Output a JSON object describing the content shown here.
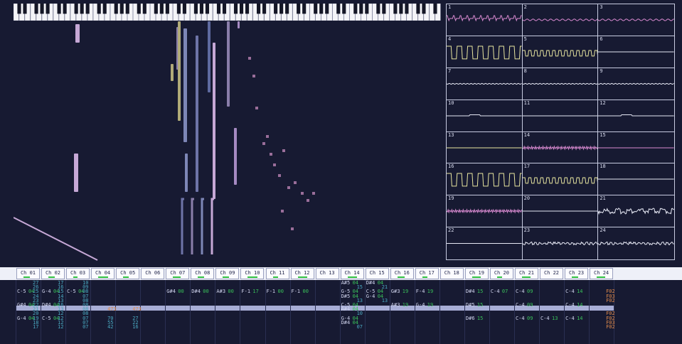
{
  "colors": {
    "background": "#171a32",
    "scope_wave_pink": "#d88ad0",
    "scope_wave_yellow": "#e8e6a0",
    "scope_wave_white": "#e6e8f4",
    "note_color": "#d0d4ee",
    "instrument_color": "#39c15a",
    "volume_color": "#4aa8c0",
    "effect_color": "#e08a4a",
    "cursor_row": "#a8aed6",
    "meter": "#2fbf3f"
  },
  "channels": [
    "Ch 01",
    "Ch 02",
    "Ch 03",
    "Ch 04",
    "Ch 05",
    "Ch 06",
    "Ch 07",
    "Ch 08",
    "Ch 09",
    "Ch 10",
    "Ch 11",
    "Ch 12",
    "Ch 13",
    "Ch 14",
    "Ch 15",
    "Ch 16",
    "Ch 17",
    "Ch 18",
    "Ch 19",
    "Ch 20",
    "Ch 21",
    "Ch 22",
    "Ch 23",
    "Ch 24"
  ],
  "channel_levels": [
    0.6,
    0.6,
    0.4,
    0.9,
    0.5,
    0,
    0.7,
    0.6,
    0.6,
    0.9,
    0.5,
    0.9,
    0,
    0.9,
    0,
    0.7,
    0.5,
    0,
    0.8,
    0.5,
    0.8,
    0,
    0.6,
    0.8
  ],
  "scopes": [
    {
      "num": "1",
      "color": "pink",
      "shape": "spiky"
    },
    {
      "num": "2",
      "color": "pink",
      "shape": "small"
    },
    {
      "num": "3",
      "color": "pink",
      "shape": "small"
    },
    {
      "num": "4",
      "color": "yellow",
      "shape": "square_big"
    },
    {
      "num": "5",
      "color": "yellow",
      "shape": "square_small"
    },
    {
      "num": "6",
      "color": "white",
      "shape": "flat"
    },
    {
      "num": "7",
      "color": "white",
      "shape": "flat_ripple"
    },
    {
      "num": "8",
      "color": "white",
      "shape": "flat_ripple"
    },
    {
      "num": "9",
      "color": "white",
      "shape": "flat_ripple"
    },
    {
      "num": "10",
      "color": "white",
      "shape": "flat_bump"
    },
    {
      "num": "11",
      "color": "white",
      "shape": "flat"
    },
    {
      "num": "12",
      "color": "white",
      "shape": "flat_bump"
    },
    {
      "num": "13",
      "color": "yellow",
      "shape": "flat"
    },
    {
      "num": "14",
      "color": "pink",
      "shape": "dense"
    },
    {
      "num": "15",
      "color": "pink",
      "shape": "flat"
    },
    {
      "num": "16",
      "color": "yellow",
      "shape": "square_big"
    },
    {
      "num": "17",
      "color": "yellow",
      "shape": "square_small"
    },
    {
      "num": "18",
      "color": "white",
      "shape": "flat"
    },
    {
      "num": "19",
      "color": "pink",
      "shape": "dense"
    },
    {
      "num": "20",
      "color": "white",
      "shape": "flat"
    },
    {
      "num": "21",
      "color": "white",
      "shape": "noise"
    },
    {
      "num": "22",
      "color": "white",
      "shape": "flat"
    },
    {
      "num": "23",
      "color": "white",
      "shape": "noise_small"
    },
    {
      "num": "24",
      "color": "white",
      "shape": "noise_small"
    }
  ],
  "pattern": [
    {
      "ch": 0,
      "lines": [
        [
          "",
          "",
          "27"
        ],
        [
          "",
          "",
          "26"
        ],
        [
          "C-5",
          "04",
          "25"
        ],
        [
          "",
          "",
          "24"
        ],
        [
          "",
          "",
          "23"
        ],
        [
          "G#4",
          "04",
          "22"
        ],
        [
          "",
          "",
          "21"
        ],
        [
          "",
          "",
          "20"
        ],
        [
          "G-4",
          "04",
          "19"
        ],
        [
          "",
          "",
          "18"
        ],
        [
          "",
          "",
          "17"
        ]
      ]
    },
    {
      "ch": 1,
      "lines": [
        [
          "",
          "",
          "17"
        ],
        [
          "",
          "",
          "16"
        ],
        [
          "G-4",
          "04",
          "15"
        ],
        [
          "",
          "",
          "14"
        ],
        [
          "",
          "",
          "13"
        ],
        [
          "D#4",
          "04",
          "16"
        ],
        [
          "",
          "",
          "13"
        ],
        [
          "",
          "",
          "12"
        ],
        [
          "C-5",
          "04",
          "12"
        ],
        [
          "",
          "",
          "12"
        ],
        [
          "",
          "",
          "12"
        ]
      ]
    },
    {
      "ch": 2,
      "lines": [
        [
          "",
          "",
          "10"
        ],
        [
          "",
          "",
          "09"
        ],
        [
          "C-5",
          "04",
          "08"
        ],
        [
          "",
          "",
          "07"
        ],
        [
          "",
          "",
          "08"
        ],
        [
          "",
          "",
          "08"
        ],
        [
          "",
          "",
          "08"
        ],
        [
          "",
          "",
          "08"
        ],
        [
          "",
          "",
          "07"
        ],
        [
          "",
          "",
          "07"
        ],
        [
          "",
          "",
          "07"
        ]
      ]
    },
    {
      "ch": 3,
      "lines": [
        [
          "",
          "",
          ""
        ],
        [
          "",
          "",
          ""
        ],
        [
          "",
          "",
          ""
        ],
        [
          "",
          "",
          ""
        ],
        [
          "",
          "",
          ""
        ],
        [
          "",
          "",
          ""
        ],
        [
          "",
          "",
          "473"
        ],
        [
          "",
          "",
          ""
        ],
        [
          "",
          "",
          "70"
        ],
        [
          "",
          "",
          "55"
        ],
        [
          "",
          "",
          "42"
        ]
      ]
    },
    {
      "ch": 4,
      "lines": [
        [
          "",
          "",
          ""
        ],
        [
          "",
          "",
          ""
        ],
        [
          "",
          "",
          ""
        ],
        [
          "",
          "",
          ""
        ],
        [
          "",
          "",
          ""
        ],
        [
          "",
          "",
          ""
        ],
        [
          "",
          "",
          "473"
        ],
        [
          "",
          "",
          ""
        ],
        [
          "",
          "",
          "27"
        ],
        [
          "",
          "",
          "22"
        ],
        [
          "",
          "",
          "16"
        ]
      ]
    },
    {
      "ch": 6,
      "lines": [
        [
          "",
          "",
          ""
        ],
        [
          "",
          "",
          ""
        ],
        [
          "G#4",
          "00",
          ""
        ]
      ]
    },
    {
      "ch": 7,
      "lines": [
        [
          "",
          "",
          ""
        ],
        [
          "",
          "",
          ""
        ],
        [
          "D#4",
          "00",
          ""
        ]
      ]
    },
    {
      "ch": 8,
      "lines": [
        [
          "",
          "",
          ""
        ],
        [
          "",
          "",
          ""
        ],
        [
          "A#3",
          "00",
          ""
        ]
      ]
    },
    {
      "ch": 9,
      "lines": [
        [
          "",
          "",
          ""
        ],
        [
          "",
          "",
          ""
        ],
        [
          "F-1",
          "17",
          ""
        ]
      ]
    },
    {
      "ch": 10,
      "lines": [
        [
          "",
          "",
          ""
        ],
        [
          "",
          "",
          ""
        ],
        [
          "F-1",
          "00",
          ""
        ]
      ]
    },
    {
      "ch": 11,
      "lines": [
        [
          "",
          "",
          ""
        ],
        [
          "",
          "",
          ""
        ],
        [
          "F-1",
          "00",
          ""
        ]
      ]
    },
    {
      "ch": 13,
      "lines": [
        [
          "A#5",
          "04",
          ""
        ],
        [
          "",
          "",
          "15"
        ],
        [
          "G-5",
          "04",
          ""
        ],
        [
          "D#5",
          "04",
          ""
        ],
        [
          "",
          "",
          "13"
        ],
        [
          "C-5",
          "04",
          ""
        ],
        [
          "A#4",
          "04",
          ""
        ],
        [
          "",
          "",
          "10"
        ],
        [
          "G-4",
          "04",
          ""
        ],
        [
          "D#4",
          "04",
          ""
        ],
        [
          "",
          "",
          "07"
        ]
      ]
    },
    {
      "ch": 14,
      "lines": [
        [
          "D#4",
          "04",
          ""
        ],
        [
          "",
          "",
          "21"
        ],
        [
          "C-5",
          "04",
          ""
        ],
        [
          "G-4",
          "04",
          ""
        ],
        [
          "",
          "",
          "13"
        ],
        [
          "",
          "",
          ""
        ]
      ]
    },
    {
      "ch": 15,
      "lines": [
        [
          "",
          "",
          ""
        ],
        [
          "",
          "",
          ""
        ],
        [
          "G#3",
          "19",
          ""
        ],
        [
          "",
          "",
          ""
        ],
        [
          "",
          "",
          ""
        ],
        [
          "A#3",
          "19",
          ""
        ]
      ]
    },
    {
      "ch": 16,
      "lines": [
        [
          "",
          "",
          ""
        ],
        [
          "",
          "",
          ""
        ],
        [
          "F-4",
          "19",
          ""
        ],
        [
          "",
          "",
          ""
        ],
        [
          "",
          "",
          ""
        ],
        [
          "G-4",
          "19",
          ""
        ]
      ]
    },
    {
      "ch": 18,
      "lines": [
        [
          "",
          "",
          ""
        ],
        [
          "",
          "",
          ""
        ],
        [
          "D#4",
          "15",
          ""
        ],
        [
          "",
          "",
          ""
        ],
        [
          "",
          "",
          ""
        ],
        [
          "D#5",
          "15",
          ""
        ],
        [
          "",
          "",
          ""
        ],
        [
          "",
          "",
          ""
        ],
        [
          "D#6",
          "15",
          ""
        ]
      ]
    },
    {
      "ch": 19,
      "lines": [
        [
          "",
          "",
          ""
        ],
        [
          "",
          "",
          ""
        ],
        [
          "C-4",
          "07",
          ""
        ],
        [
          "",
          "",
          ""
        ],
        [
          "",
          "",
          ""
        ],
        [
          "",
          "",
          ""
        ]
      ]
    },
    {
      "ch": 20,
      "lines": [
        [
          "",
          "",
          ""
        ],
        [
          "",
          "",
          ""
        ],
        [
          "C-4",
          "09",
          ""
        ],
        [
          "",
          "",
          ""
        ],
        [
          "",
          "",
          ""
        ],
        [
          "C-4",
          "09",
          ""
        ],
        [
          "",
          "",
          ""
        ],
        [
          "",
          "",
          ""
        ],
        [
          "C-4",
          "09",
          ""
        ]
      ]
    },
    {
      "ch": 21,
      "lines": [
        [
          "",
          "",
          ""
        ],
        [
          "",
          "",
          ""
        ],
        [
          "",
          "",
          ""
        ],
        [
          "",
          "",
          ""
        ],
        [
          "",
          "",
          ""
        ],
        [
          "",
          "",
          ""
        ],
        [
          "",
          "",
          ""
        ],
        [
          "",
          "",
          ""
        ],
        [
          "C-4",
          "13",
          ""
        ]
      ]
    },
    {
      "ch": 22,
      "lines": [
        [
          "",
          "",
          ""
        ],
        [
          "",
          "",
          ""
        ],
        [
          "C-4",
          "14",
          ""
        ],
        [
          "",
          "",
          ""
        ],
        [
          "",
          "",
          ""
        ],
        [
          "C-4",
          "14",
          ""
        ],
        [
          "",
          "",
          ""
        ],
        [
          "",
          "",
          ""
        ],
        [
          "C-4",
          "14",
          ""
        ]
      ]
    },
    {
      "ch": 23,
      "lines": [
        [
          "",
          "",
          ""
        ],
        [
          "",
          "",
          ""
        ],
        [
          "",
          "",
          "F02"
        ],
        [
          "",
          "",
          "F03"
        ],
        [
          "",
          "",
          "F02"
        ],
        [
          "",
          "",
          ""
        ],
        [
          "",
          "",
          ""
        ],
        [
          "",
          "",
          "F02"
        ],
        [
          "",
          "",
          "F02"
        ],
        [
          "",
          "",
          "F03"
        ],
        [
          "",
          "",
          "F02"
        ]
      ]
    }
  ]
}
